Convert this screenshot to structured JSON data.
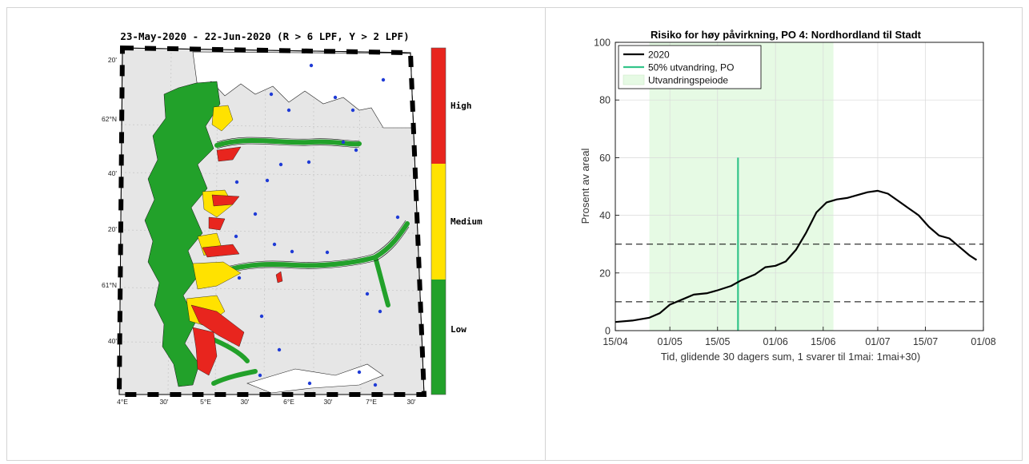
{
  "map": {
    "title": "23-May-2020  - 22-Jun-2020  (R > 6 LPF, Y > 2 LPF)",
    "lat_labels": [
      "20'",
      "62°N",
      "40'",
      "20'",
      "61°N",
      "40'"
    ],
    "lon_labels": [
      "4°E",
      "30'",
      "5°E",
      "30'",
      "6°E",
      "30'",
      "7°E",
      "30'"
    ],
    "colorbar": [
      {
        "label": "High",
        "color": "#e8251e"
      },
      {
        "label": "Medium",
        "color": "#ffe200"
      },
      {
        "label": "Low",
        "color": "#22a12a"
      }
    ],
    "colors": {
      "sea_fill": "#e6e6e6",
      "fjord_green": "#22a12a",
      "fjord_red": "#e8251e",
      "fjord_yellow": "#ffe200",
      "stations": "#1f3bd6"
    }
  },
  "chart_data": {
    "type": "line",
    "title": "Risiko for høy påvirkning, PO 4: Nordhordland til Stadt",
    "xlabel": "Tid, glidende 30 dagers sum, 1 svarer til 1mai: 1mai+30)",
    "ylabel": "Prosent av areal",
    "xlim": [
      "2020-04-15",
      "2020-08-01"
    ],
    "ylim": [
      0,
      100
    ],
    "x_ticks": [
      "15/04",
      "01/05",
      "15/05",
      "01/06",
      "15/06",
      "01/07",
      "15/07",
      "01/08"
    ],
    "y_ticks": [
      0,
      20,
      40,
      60,
      80,
      100
    ],
    "grid": true,
    "legend_position": "top-left",
    "series": [
      {
        "name": "2020",
        "color": "#000000",
        "x": [
          "2020-04-15",
          "2020-04-20",
          "2020-04-25",
          "2020-04-28",
          "2020-05-01",
          "2020-05-05",
          "2020-05-08",
          "2020-05-12",
          "2020-05-15",
          "2020-05-19",
          "2020-05-22",
          "2020-05-26",
          "2020-05-29",
          "2020-06-01",
          "2020-06-04",
          "2020-06-07",
          "2020-06-10",
          "2020-06-13",
          "2020-06-16",
          "2020-06-19",
          "2020-06-22",
          "2020-06-25",
          "2020-06-28",
          "2020-07-01",
          "2020-07-04",
          "2020-07-07",
          "2020-07-10",
          "2020-07-13",
          "2020-07-16",
          "2020-07-19",
          "2020-07-22",
          "2020-07-25",
          "2020-07-28",
          "2020-07-30"
        ],
        "y": [
          3,
          3.5,
          4.5,
          6,
          9,
          11,
          12.5,
          13,
          14,
          15.5,
          17.5,
          19.5,
          22,
          22.5,
          24,
          28,
          34,
          41,
          44.5,
          45.5,
          46,
          47,
          48,
          48.5,
          47.5,
          45,
          42.5,
          40,
          36,
          33,
          32,
          29,
          26,
          24.5
        ]
      }
    ],
    "annotations": [
      {
        "type": "vline",
        "x": "2020-05-21",
        "y_range": [
          0,
          60
        ],
        "color": "#33c48a",
        "label": "50% utvandring, PO"
      },
      {
        "type": "vspan",
        "x_range": [
          "2020-04-25",
          "2020-06-18"
        ],
        "color": "#e6fae4",
        "label": "Utvandringspeiode"
      },
      {
        "type": "hline",
        "y": 10,
        "style": "dashed"
      },
      {
        "type": "hline",
        "y": 30,
        "style": "dashed"
      }
    ]
  }
}
